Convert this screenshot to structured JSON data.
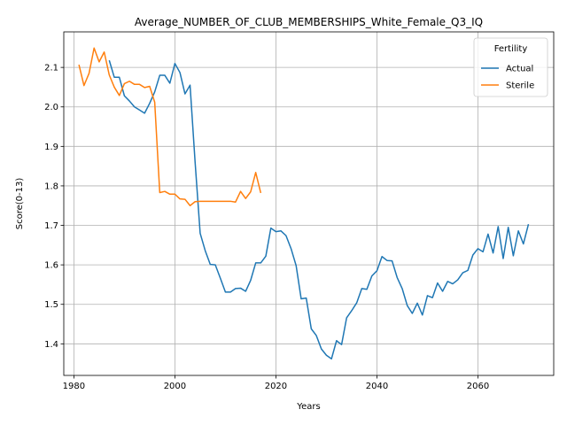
{
  "chart_data": {
    "type": "line",
    "title": "Average_NUMBER_OF_CLUB_MEMBERSHIPS_White_Female_Q3_IQ",
    "xlabel": "Years",
    "ylabel": "Score(0-13)",
    "xlim": [
      1978,
      2075
    ],
    "ylim": [
      1.32,
      2.19
    ],
    "xticks": [
      1980,
      2000,
      2020,
      2040,
      2060
    ],
    "yticks": [
      1.4,
      1.5,
      1.6,
      1.7,
      1.8,
      1.9,
      2.0,
      2.1
    ],
    "xtick_labels": [
      "1980",
      "2000",
      "2020",
      "2040",
      "2060"
    ],
    "ytick_labels": [
      "1.4",
      "1.5",
      "1.6",
      "1.7",
      "1.8",
      "1.9",
      "2.0",
      "2.1"
    ],
    "grid": true,
    "legend": {
      "title": "Fertility",
      "placement": "top-right"
    },
    "series": [
      {
        "name": "Actual",
        "color": "#1f77b4",
        "x": [
          1987,
          1988,
          1989,
          1990,
          1991,
          1992,
          1993,
          1994,
          1995,
          1996,
          1997,
          1998,
          1999,
          2000,
          2001,
          2002,
          2003,
          2004,
          2005,
          2006,
          2007,
          2008,
          2009,
          2010,
          2011,
          2012,
          2013,
          2014,
          2015,
          2016,
          2017,
          2018,
          2019,
          2020,
          2021,
          2022,
          2023,
          2024,
          2025,
          2026,
          2027,
          2028,
          2029,
          2030,
          2031,
          2032,
          2033,
          2034,
          2035,
          2036,
          2037,
          2038,
          2039,
          2040,
          2041,
          2042,
          2043,
          2044,
          2045,
          2046,
          2047,
          2048,
          2049,
          2050,
          2051,
          2052,
          2053,
          2054,
          2055,
          2056,
          2057,
          2058,
          2059,
          2060,
          2061,
          2062,
          2063,
          2064,
          2065,
          2066,
          2067,
          2068,
          2069,
          2070
        ],
        "y": [
          2.118,
          2.075,
          2.075,
          2.028,
          2.015,
          2.0,
          1.992,
          1.984,
          2.009,
          2.038,
          2.08,
          2.08,
          2.06,
          2.11,
          2.087,
          2.033,
          2.055,
          1.86,
          1.68,
          1.636,
          1.601,
          1.6,
          1.566,
          1.531,
          1.531,
          1.54,
          1.541,
          1.533,
          1.561,
          1.605,
          1.605,
          1.622,
          1.693,
          1.684,
          1.686,
          1.674,
          1.641,
          1.598,
          1.514,
          1.516,
          1.438,
          1.421,
          1.387,
          1.371,
          1.362,
          1.408,
          1.398,
          1.466,
          1.484,
          1.504,
          1.54,
          1.538,
          1.572,
          1.585,
          1.621,
          1.611,
          1.61,
          1.568,
          1.54,
          1.497,
          1.477,
          1.503,
          1.473,
          1.522,
          1.517,
          1.554,
          1.533,
          1.558,
          1.552,
          1.562,
          1.58,
          1.586,
          1.625,
          1.641,
          1.633,
          1.678,
          1.63,
          1.697,
          1.616,
          1.695,
          1.623,
          1.686,
          1.653,
          1.703
        ]
      },
      {
        "name": "Sterile",
        "color": "#ff7f0e",
        "x": [
          1981,
          1982,
          1983,
          1984,
          1985,
          1986,
          1987,
          1988,
          1989,
          1990,
          1991,
          1992,
          1993,
          1994,
          1995,
          1996,
          1997,
          1998,
          1999,
          2000,
          2001,
          2002,
          2003,
          2004,
          2005,
          2006,
          2007,
          2008,
          2009,
          2010,
          2011,
          2012,
          2013,
          2014,
          2015,
          2016,
          2017
        ],
        "y": [
          2.107,
          2.054,
          2.085,
          2.149,
          2.114,
          2.139,
          2.081,
          2.05,
          2.029,
          2.059,
          2.065,
          2.057,
          2.057,
          2.049,
          2.052,
          2.012,
          1.783,
          1.786,
          1.779,
          1.779,
          1.767,
          1.766,
          1.75,
          1.76,
          1.761,
          1.761,
          1.761,
          1.761,
          1.761,
          1.761,
          1.761,
          1.759,
          1.786,
          1.768,
          1.785,
          1.834,
          1.782
        ]
      }
    ]
  }
}
